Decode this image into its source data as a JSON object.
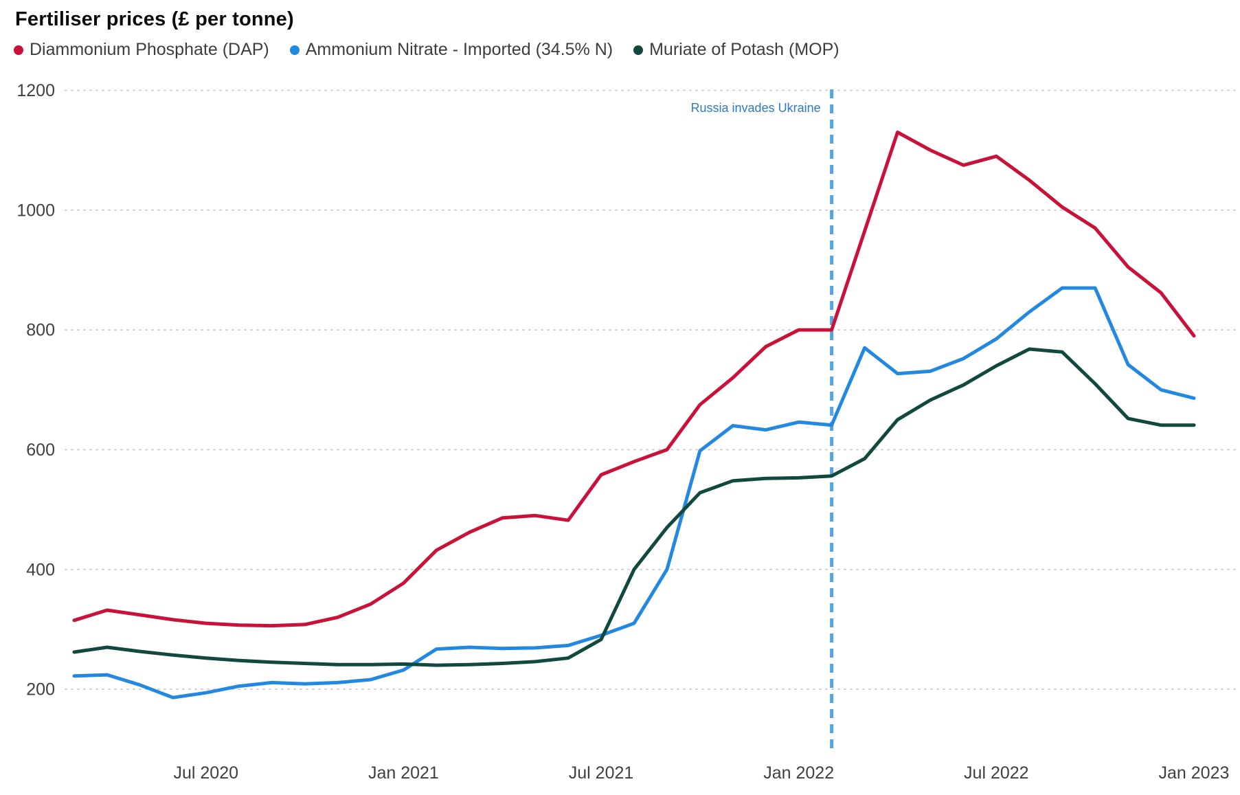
{
  "title": "Fertiliser prices (£ per tonne)",
  "legend": [
    {
      "label": "Diammonium Phosphate (DAP)",
      "color": "#c9113a"
    },
    {
      "label": "Ammonium Nitrate - Imported (34.5% N)",
      "color": "#2389e0"
    },
    {
      "label": "Muriate of Potash (MOP)",
      "color": "#11493f"
    }
  ],
  "annotation": {
    "text": "Russia invades Ukraine",
    "text_color": "#2e7bc4",
    "line_color": "#55a4e4",
    "month": "Feb 2022"
  },
  "axis": {
    "y_tick_labels": [
      "1200",
      "1000",
      "800",
      "600",
      "400",
      "200"
    ],
    "x_tick_labels": [
      "Jul 2020",
      "Jan 2021",
      "Jul 2021",
      "Jan 2022",
      "Jul 2022",
      "Jan 2023"
    ],
    "text_color": "#404040",
    "grid_color": "#cfcfcf"
  },
  "chart_data": {
    "type": "line",
    "title": "Fertiliser prices (£ per tonne)",
    "xlabel": "",
    "ylabel": "£ per tonne",
    "ylim": [
      150,
      1230
    ],
    "y_ticks": [
      200,
      400,
      600,
      800,
      1000,
      1200
    ],
    "grid": "horizontal-dotted",
    "legend_position": "top",
    "x": [
      "Mar 2020",
      "Apr 2020",
      "May 2020",
      "Jun 2020",
      "Jul 2020",
      "Aug 2020",
      "Sep 2020",
      "Oct 2020",
      "Nov 2020",
      "Dec 2020",
      "Jan 2021",
      "Feb 2021",
      "Mar 2021",
      "Apr 2021",
      "May 2021",
      "Jun 2021",
      "Jul 2021",
      "Aug 2021",
      "Sep 2021",
      "Oct 2021",
      "Nov 2021",
      "Dec 2021",
      "Jan 2022",
      "Feb 2022",
      "Mar 2022",
      "Apr 2022",
      "May 2022",
      "Jun 2022",
      "Jul 2022",
      "Aug 2022",
      "Sep 2022",
      "Oct 2022",
      "Nov 2022",
      "Dec 2022",
      "Jan 2023"
    ],
    "x_ticks": [
      {
        "index": 4,
        "label": "Jul 2020"
      },
      {
        "index": 10,
        "label": "Jan 2021"
      },
      {
        "index": 16,
        "label": "Jul 2021"
      },
      {
        "index": 22,
        "label": "Jan 2022"
      },
      {
        "index": 28,
        "label": "Jul 2022"
      },
      {
        "index": 34,
        "label": "Jan 2023"
      }
    ],
    "annotation_month_index": 23,
    "series": [
      {
        "name": "Diammonium Phosphate (DAP)",
        "color": "#c9113a",
        "values": [
          315,
          332,
          324,
          316,
          310,
          307,
          306,
          308,
          320,
          342,
          377,
          432,
          462,
          486,
          490,
          482,
          558,
          580,
          600,
          675,
          720,
          772,
          800,
          800,
          965,
          1130,
          1100,
          1075,
          1090,
          1050,
          1005,
          970,
          905,
          862,
          790
        ]
      },
      {
        "name": "Ammonium Nitrate - Imported (34.5% N)",
        "color": "#2389e0",
        "values": [
          222,
          224,
          207,
          186,
          194,
          205,
          211,
          209,
          211,
          216,
          232,
          267,
          270,
          268,
          269,
          273,
          290,
          310,
          400,
          598,
          640,
          633,
          646,
          641,
          770,
          727,
          731,
          752,
          785,
          830,
          870,
          870,
          742,
          700,
          686
        ]
      },
      {
        "name": "Muriate of Potash (MOP)",
        "color": "#11493f",
        "values": [
          262,
          270,
          263,
          257,
          252,
          248,
          245,
          243,
          241,
          241,
          242,
          240,
          241,
          243,
          246,
          252,
          283,
          400,
          470,
          528,
          548,
          552,
          553,
          556,
          585,
          650,
          683,
          708,
          740,
          768,
          763,
          710,
          652,
          641,
          641
        ]
      }
    ]
  }
}
